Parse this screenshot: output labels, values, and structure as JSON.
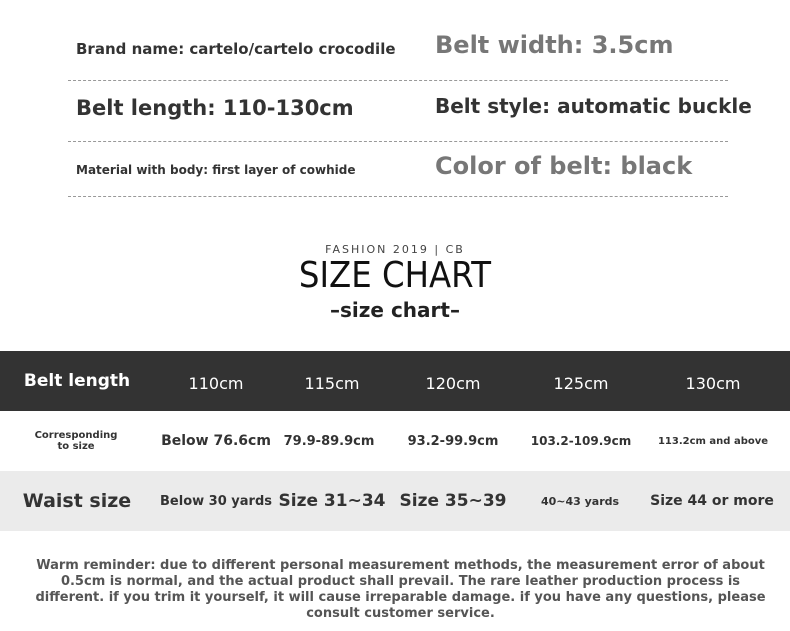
{
  "specs": {
    "brand": "Brand name: cartelo/cartelo crocodile",
    "width": "Belt width: 3.5cm",
    "length": "Belt length: 110-130cm",
    "style": "Belt style: automatic buckle",
    "material": "Material with body: first layer of cowhide",
    "color": "Color of belt: black"
  },
  "heading": {
    "kicker": "FASHION  2019 | CB",
    "title": "SIZE CHART",
    "subtitle": "–size chart–"
  },
  "table": {
    "rows": [
      {
        "label": "Belt length",
        "cells": [
          "110cm",
          "115cm",
          "120cm",
          "125cm",
          "130cm"
        ]
      },
      {
        "label": "Corresponding to size",
        "cells": [
          "Below 76.6cm",
          "79.9-89.9cm",
          "93.2-99.9cm",
          "103.2-109.9cm",
          "113.2cm and above"
        ]
      },
      {
        "label": "Waist size",
        "cells": [
          "Below 30 yards",
          "Size 31~34",
          "Size 35~39",
          "40~43 yards",
          "Size 44 or more"
        ]
      }
    ]
  },
  "reminder": "Warm reminder: due to different personal measurement methods, the measurement error of about 0.5cm is normal, and the actual product shall prevail. The rare leather production process is different. if you trim it yourself, it will cause irreparable damage. if you have any questions, please consult customer service.",
  "colors": {
    "header_bg": "#333333",
    "alt_bg": "#ebebeb",
    "muted": "#777777"
  }
}
